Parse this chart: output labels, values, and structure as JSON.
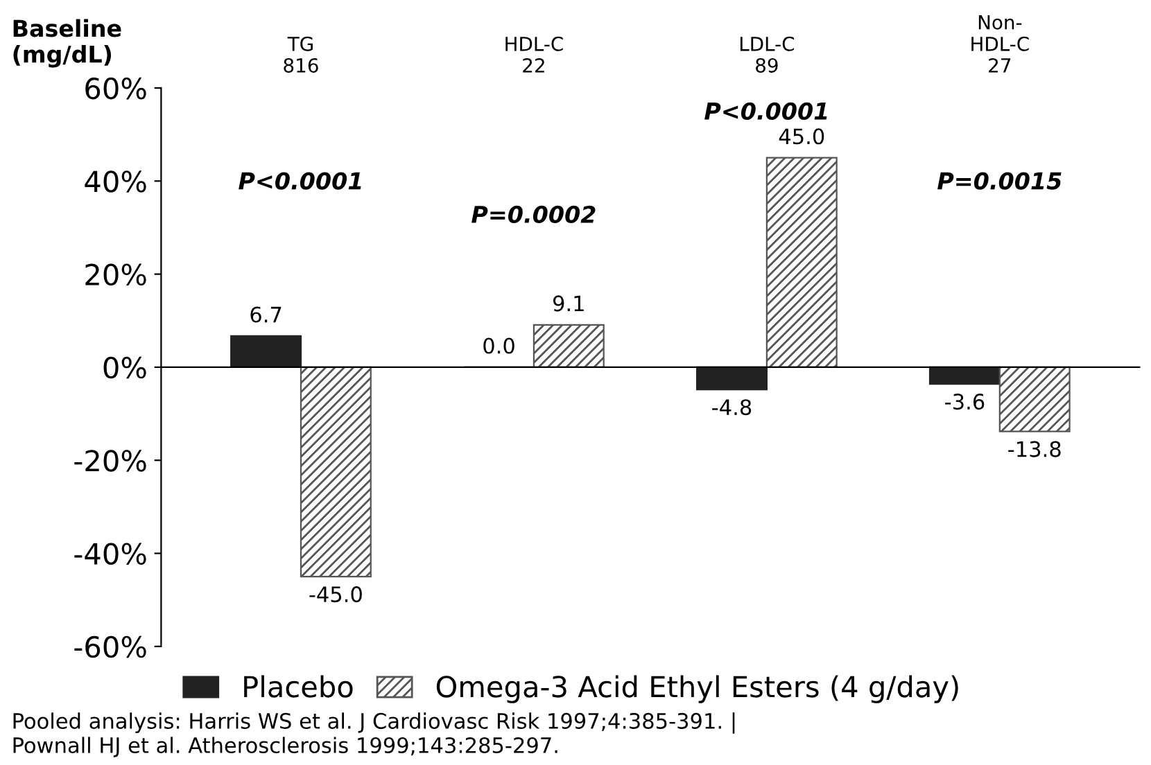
{
  "chart_data": {
    "type": "bar",
    "categories": [
      "TG\n816",
      "HDL-C\n22",
      "LDL-C\n89",
      "Non-\nHDL-C\n27"
    ],
    "series": [
      {
        "name": "Placebo",
        "color": "#222222",
        "values": [
          6.7,
          0.0,
          -4.8,
          -3.6
        ],
        "value_labels": [
          "6.7",
          "0.0",
          "-4.8",
          "-3.6"
        ]
      },
      {
        "name": "Omega-3 Acid Ethyl Esters (4 g/day)",
        "color": "#555555",
        "values": [
          -45.0,
          9.1,
          45.0,
          -13.8
        ],
        "value_labels": [
          "-45.0",
          "9.1",
          "45.0",
          "-13.8"
        ]
      }
    ],
    "ylim": [
      -60,
      60
    ],
    "yticks": [
      {
        "value": -60,
        "label": "-60%"
      },
      {
        "value": -40,
        "label": "-40%"
      },
      {
        "value": -20,
        "label": "-20%"
      },
      {
        "value": 0,
        "label": "0%"
      },
      {
        "value": 20,
        "label": "20%"
      },
      {
        "value": 40,
        "label": "40%"
      },
      {
        "value": 60,
        "label": "60%"
      }
    ],
    "legend": "bottom",
    "annotations": [
      "Baseline\n(mg/dL)",
      "P<0.0001",
      "P=0.0002",
      "P<0.0001",
      "P=0.0015",
      "Pooled analysis: Harris WS et al. J Cardiovasc Risk 1997;4:385-391. |\nPownall HJ et al. Atherosclerosis 1999;143:285-297."
    ]
  }
}
